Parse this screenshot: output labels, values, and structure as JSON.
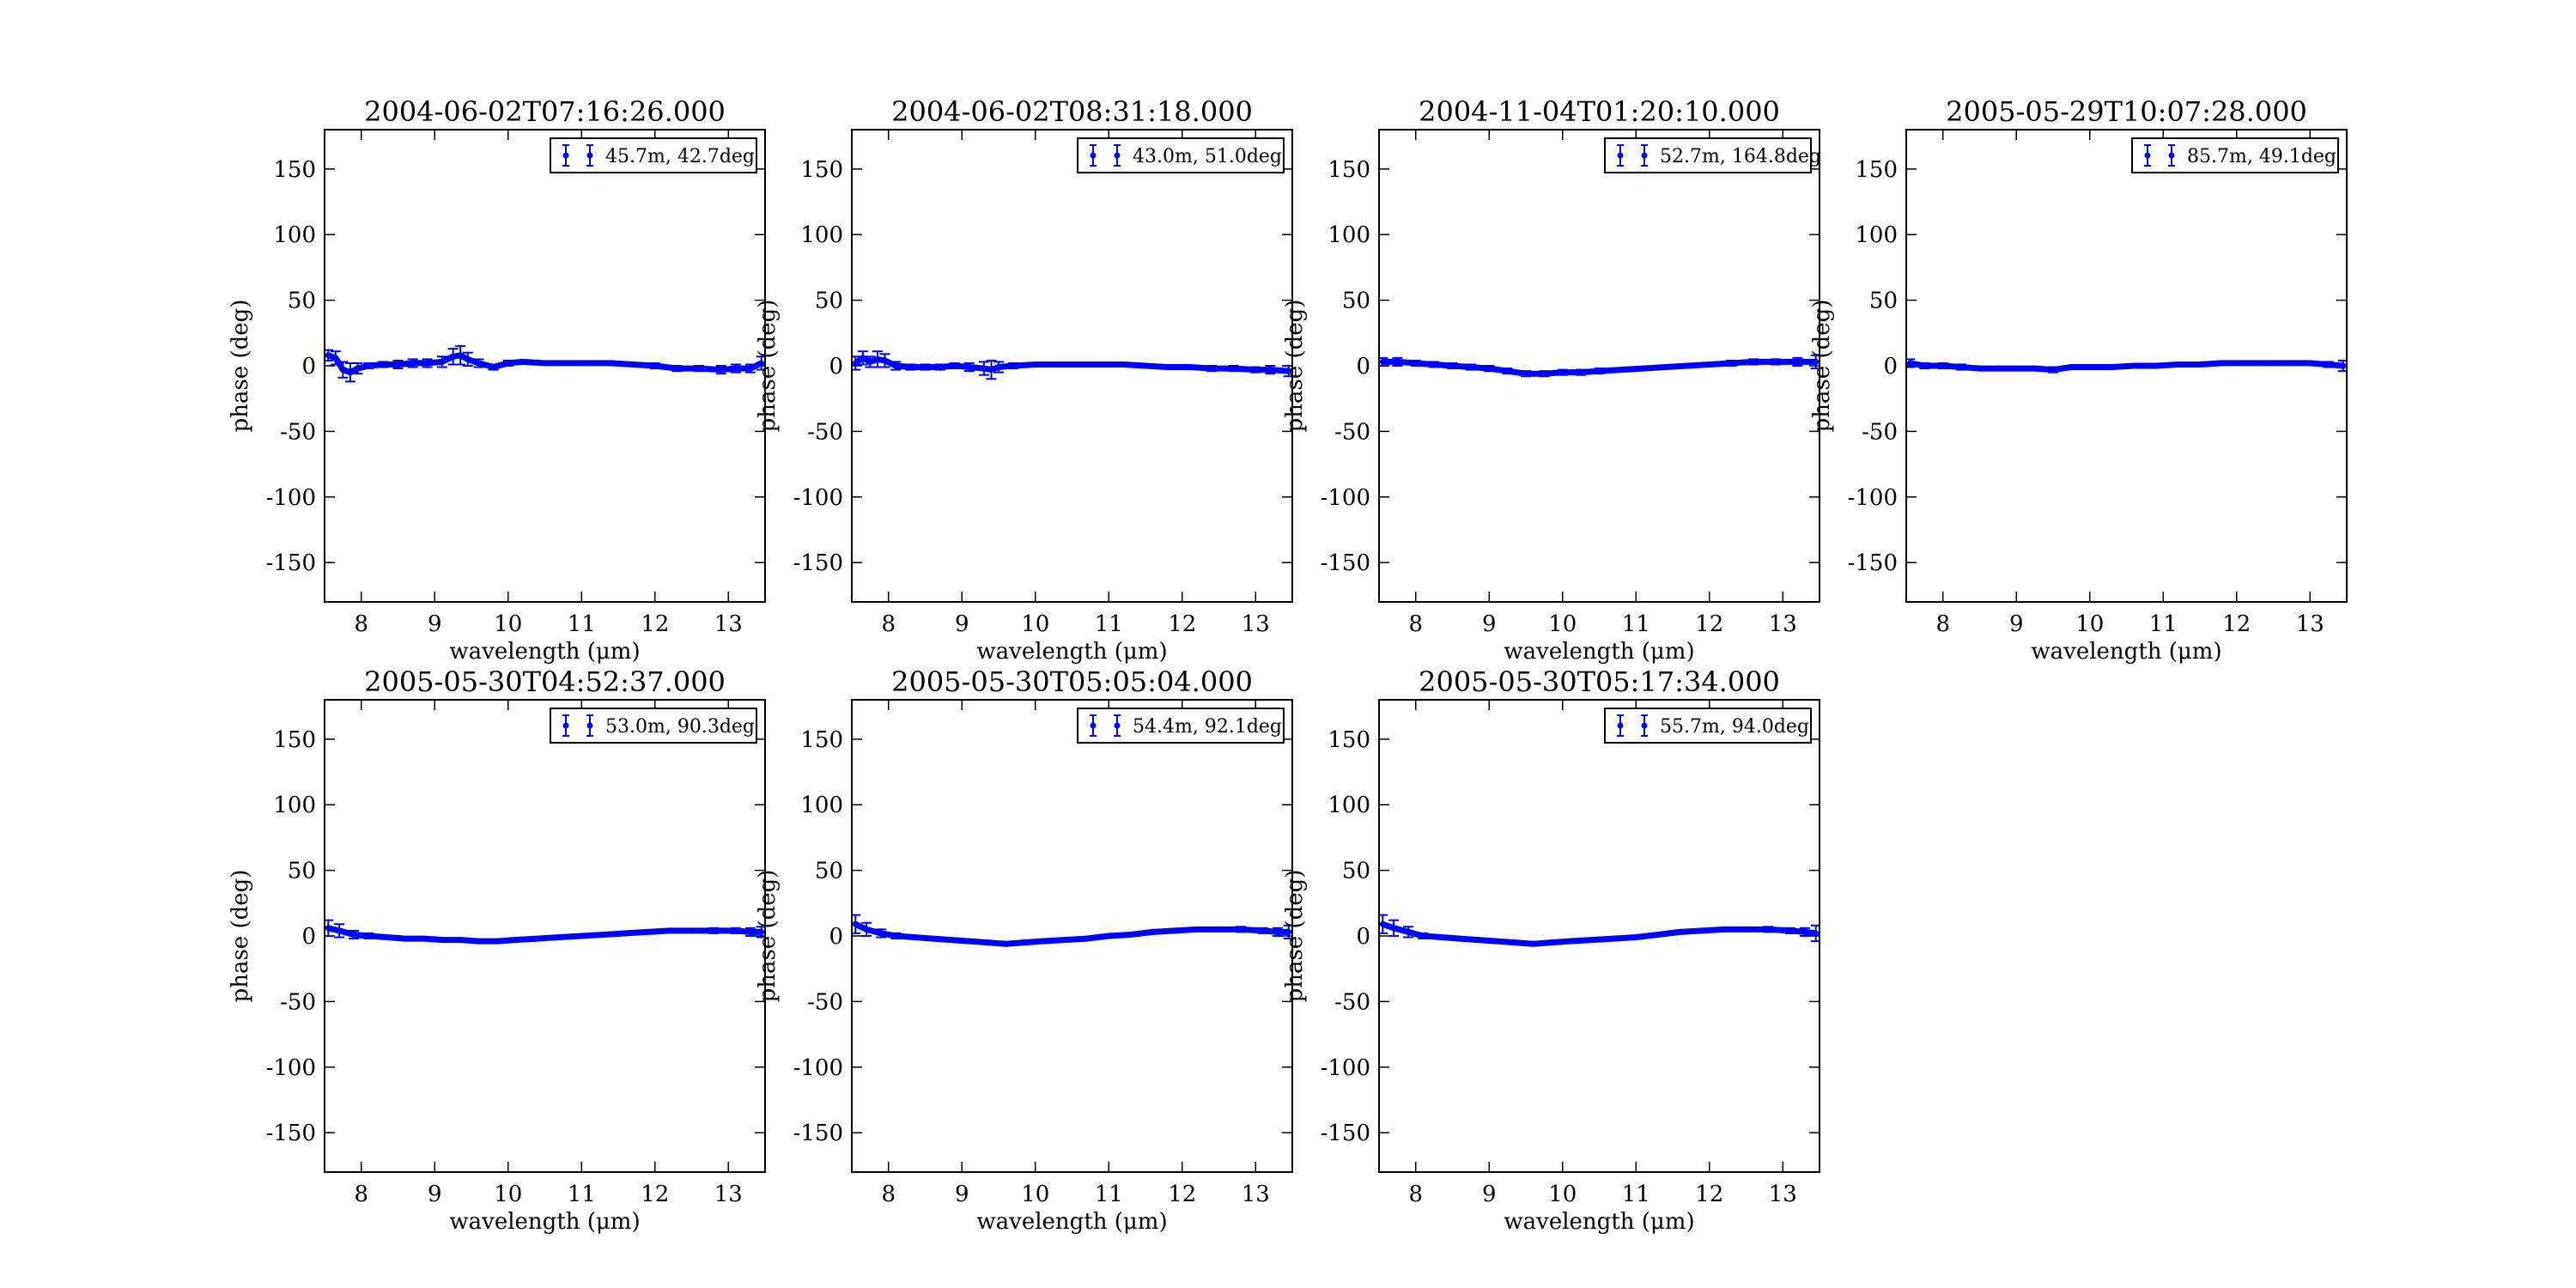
{
  "figure": {
    "layout": "2 rows x 4 columns, 7 panels",
    "marker_color": "#0000ff"
  },
  "chart_data": [
    {
      "type": "scatter",
      "title": "2004-06-02T07:16:26.000",
      "xlabel": "wavelength (μm)",
      "ylabel": "phase (deg)",
      "xlim": [
        7.5,
        13.5
      ],
      "ylim": [
        -180,
        180
      ],
      "xticks": [
        8,
        9,
        10,
        11,
        12,
        13
      ],
      "yticks": [
        -150,
        -100,
        -50,
        0,
        50,
        100,
        150
      ],
      "legend": {
        "label": "45.7m, 42.7deg",
        "position": "top-right"
      },
      "series": [
        {
          "name": "45.7m, 42.7deg",
          "x": [
            7.55,
            7.65,
            7.75,
            7.85,
            7.95,
            8.1,
            8.3,
            8.5,
            8.7,
            8.9,
            9.1,
            9.25,
            9.35,
            9.45,
            9.6,
            9.8,
            10.0,
            10.2,
            10.5,
            10.8,
            11.1,
            11.4,
            11.7,
            12.0,
            12.3,
            12.6,
            12.9,
            13.1,
            13.3,
            13.45
          ],
          "y": [
            8,
            6,
            -3,
            -5,
            -2,
            0,
            1,
            1,
            2,
            2,
            3,
            7,
            8,
            5,
            2,
            -1,
            2,
            3,
            2,
            2,
            2,
            2,
            1,
            0,
            -2,
            -2,
            -3,
            -2,
            -2,
            2
          ],
          "err": [
            4,
            5,
            6,
            7,
            4,
            2,
            2,
            3,
            3,
            3,
            4,
            6,
            7,
            5,
            3,
            2,
            2,
            1,
            1,
            1,
            1,
            1,
            1,
            2,
            2,
            2,
            3,
            3,
            3,
            5
          ]
        }
      ]
    },
    {
      "type": "scatter",
      "title": "2004-06-02T08:31:18.000",
      "xlabel": "wavelength (μm)",
      "ylabel": "phase (deg)",
      "xlim": [
        7.5,
        13.5
      ],
      "ylim": [
        -180,
        180
      ],
      "xticks": [
        8,
        9,
        10,
        11,
        12,
        13
      ],
      "yticks": [
        -150,
        -100,
        -50,
        0,
        50,
        100,
        150
      ],
      "legend": {
        "label": "43.0m, 51.0deg",
        "position": "top-right"
      },
      "series": [
        {
          "name": "43.0m, 51.0deg",
          "x": [
            7.55,
            7.65,
            7.75,
            7.85,
            7.95,
            8.1,
            8.3,
            8.5,
            8.7,
            8.9,
            9.1,
            9.3,
            9.4,
            9.5,
            9.7,
            10.0,
            10.3,
            10.6,
            10.9,
            11.2,
            11.5,
            11.8,
            12.1,
            12.4,
            12.7,
            13.0,
            13.2,
            13.45
          ],
          "y": [
            2,
            6,
            3,
            5,
            4,
            0,
            -1,
            -1,
            -1,
            0,
            -1,
            -2,
            -3,
            -1,
            0,
            1,
            1,
            1,
            1,
            1,
            0,
            -1,
            -1,
            -2,
            -2,
            -3,
            -3,
            -4
          ],
          "err": [
            5,
            5,
            4,
            6,
            5,
            3,
            2,
            2,
            2,
            2,
            3,
            5,
            7,
            4,
            2,
            1,
            1,
            1,
            1,
            1,
            1,
            1,
            1,
            2,
            2,
            2,
            3,
            4
          ]
        }
      ]
    },
    {
      "type": "scatter",
      "title": "2004-11-04T01:20:10.000",
      "xlabel": "wavelength (μm)",
      "ylabel": "phase (deg)",
      "xlim": [
        7.5,
        13.5
      ],
      "ylim": [
        -180,
        180
      ],
      "xticks": [
        8,
        9,
        10,
        11,
        12,
        13
      ],
      "yticks": [
        -150,
        -100,
        -50,
        0,
        50,
        100,
        150
      ],
      "legend": {
        "label": "52.7m, 164.8deg",
        "position": "top-right"
      },
      "series": [
        {
          "name": "52.7m, 164.8deg",
          "x": [
            7.55,
            7.75,
            8.0,
            8.25,
            8.5,
            8.75,
            9.0,
            9.25,
            9.5,
            9.75,
            10.0,
            10.25,
            10.5,
            10.8,
            11.1,
            11.4,
            11.7,
            12.0,
            12.3,
            12.6,
            12.9,
            13.2,
            13.45
          ],
          "y": [
            3,
            3,
            2,
            1,
            0,
            -1,
            -2,
            -4,
            -6,
            -6,
            -5,
            -5,
            -4,
            -3,
            -2,
            -1,
            0,
            1,
            2,
            3,
            3,
            3,
            3
          ],
          "err": [
            3,
            3,
            2,
            2,
            2,
            2,
            2,
            2,
            2,
            2,
            2,
            2,
            2,
            1,
            1,
            1,
            1,
            1,
            2,
            2,
            2,
            3,
            5
          ]
        }
      ]
    },
    {
      "type": "scatter",
      "title": "2005-05-29T10:07:28.000",
      "xlabel": "wavelength (μm)",
      "ylabel": "phase (deg)",
      "xlim": [
        7.5,
        13.5
      ],
      "ylim": [
        -180,
        180
      ],
      "xticks": [
        8,
        9,
        10,
        11,
        12,
        13
      ],
      "yticks": [
        -150,
        -100,
        -50,
        0,
        50,
        100,
        150
      ],
      "legend": {
        "label": "85.7m, 49.1deg",
        "position": "top-right"
      },
      "series": [
        {
          "name": "85.7m, 49.1deg",
          "x": [
            7.55,
            7.75,
            8.0,
            8.25,
            8.5,
            8.75,
            9.0,
            9.25,
            9.5,
            9.75,
            10.0,
            10.3,
            10.6,
            10.9,
            11.2,
            11.5,
            11.8,
            12.1,
            12.4,
            12.7,
            13.0,
            13.25,
            13.45
          ],
          "y": [
            2,
            0,
            0,
            -1,
            -2,
            -2,
            -2,
            -2,
            -3,
            -1,
            -1,
            -1,
            0,
            0,
            1,
            1,
            2,
            2,
            2,
            2,
            2,
            1,
            0
          ],
          "err": [
            3,
            2,
            2,
            2,
            1,
            1,
            1,
            1,
            2,
            1,
            1,
            1,
            1,
            1,
            1,
            1,
            1,
            1,
            1,
            1,
            1,
            2,
            4
          ]
        }
      ]
    },
    {
      "type": "scatter",
      "title": "2005-05-30T04:52:37.000",
      "xlabel": "wavelength (μm)",
      "ylabel": "phase (deg)",
      "xlim": [
        7.5,
        13.5
      ],
      "ylim": [
        -180,
        180
      ],
      "xticks": [
        8,
        9,
        10,
        11,
        12,
        13
      ],
      "yticks": [
        -150,
        -100,
        -50,
        0,
        50,
        100,
        150
      ],
      "legend": {
        "label": "53.0m, 90.3deg",
        "position": "top-right"
      },
      "series": [
        {
          "name": "53.0m, 90.3deg",
          "x": [
            7.55,
            7.7,
            7.9,
            8.1,
            8.35,
            8.6,
            8.85,
            9.1,
            9.35,
            9.6,
            9.85,
            10.1,
            10.4,
            10.7,
            11.0,
            11.3,
            11.6,
            11.9,
            12.2,
            12.5,
            12.8,
            13.1,
            13.3,
            13.45
          ],
          "y": [
            6,
            4,
            1,
            0,
            -1,
            -2,
            -2,
            -3,
            -3,
            -4,
            -4,
            -3,
            -2,
            -1,
            0,
            1,
            2,
            3,
            4,
            4,
            4,
            4,
            3,
            3
          ],
          "err": [
            6,
            5,
            3,
            2,
            1,
            1,
            1,
            1,
            1,
            1,
            1,
            1,
            1,
            1,
            1,
            1,
            1,
            1,
            1,
            1,
            2,
            2,
            3,
            4
          ]
        }
      ]
    },
    {
      "type": "scatter",
      "title": "2005-05-30T05:05:04.000",
      "xlabel": "wavelength (μm)",
      "ylabel": "phase (deg)",
      "xlim": [
        7.5,
        13.5
      ],
      "ylim": [
        -180,
        180
      ],
      "xticks": [
        8,
        9,
        10,
        11,
        12,
        13
      ],
      "yticks": [
        -150,
        -100,
        -50,
        0,
        50,
        100,
        150
      ],
      "legend": {
        "label": "54.4m, 92.1deg",
        "position": "top-right"
      },
      "series": [
        {
          "name": "54.4m, 92.1deg",
          "x": [
            7.55,
            7.7,
            7.9,
            8.1,
            8.35,
            8.6,
            8.85,
            9.1,
            9.35,
            9.6,
            9.85,
            10.1,
            10.4,
            10.7,
            11.0,
            11.3,
            11.6,
            11.9,
            12.2,
            12.5,
            12.8,
            13.1,
            13.3,
            13.45
          ],
          "y": [
            9,
            5,
            2,
            0,
            -1,
            -2,
            -3,
            -4,
            -5,
            -6,
            -5,
            -4,
            -3,
            -2,
            0,
            1,
            3,
            4,
            5,
            5,
            5,
            4,
            3,
            3
          ],
          "err": [
            7,
            5,
            3,
            2,
            1,
            1,
            1,
            1,
            1,
            1,
            1,
            1,
            1,
            1,
            1,
            1,
            1,
            1,
            1,
            1,
            2,
            2,
            3,
            5
          ]
        }
      ]
    },
    {
      "type": "scatter",
      "title": "2005-05-30T05:17:34.000",
      "xlabel": "wavelength (μm)",
      "ylabel": "phase (deg)",
      "xlim": [
        7.5,
        13.5
      ],
      "ylim": [
        -180,
        180
      ],
      "xticks": [
        8,
        9,
        10,
        11,
        12,
        13
      ],
      "yticks": [
        -150,
        -100,
        -50,
        0,
        50,
        100,
        150
      ],
      "legend": {
        "label": "55.7m, 94.0deg",
        "position": "top-right"
      },
      "series": [
        {
          "name": "55.7m, 94.0deg",
          "x": [
            7.55,
            7.7,
            7.9,
            8.1,
            8.35,
            8.6,
            8.85,
            9.1,
            9.35,
            9.6,
            9.85,
            10.1,
            10.4,
            10.7,
            11.0,
            11.3,
            11.6,
            11.9,
            12.2,
            12.5,
            12.8,
            13.1,
            13.3,
            13.45
          ],
          "y": [
            9,
            6,
            3,
            0,
            -1,
            -2,
            -3,
            -4,
            -5,
            -6,
            -5,
            -4,
            -3,
            -2,
            -1,
            1,
            3,
            4,
            5,
            5,
            5,
            4,
            3,
            2
          ],
          "err": [
            7,
            6,
            4,
            2,
            1,
            1,
            1,
            1,
            1,
            1,
            1,
            1,
            1,
            1,
            1,
            1,
            1,
            1,
            1,
            1,
            2,
            2,
            3,
            6
          ]
        }
      ]
    }
  ]
}
